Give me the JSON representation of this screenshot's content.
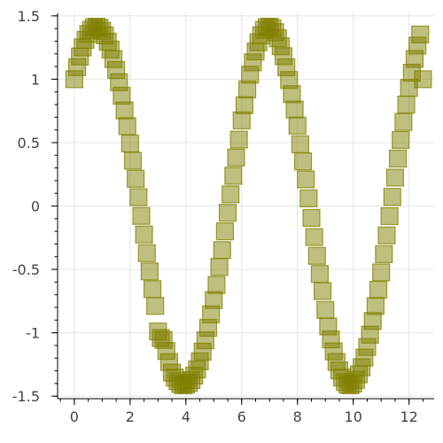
{
  "chart_data": {
    "type": "scatter",
    "title": "",
    "xlabel": "",
    "ylabel": "",
    "xlim": [
      -0.6,
      12.9
    ],
    "ylim": [
      -1.52,
      1.52
    ],
    "grid": true,
    "marker": "square",
    "marker_color": "#808000",
    "marker_alpha": 0.5,
    "x_ticks": [
      0,
      2,
      4,
      6,
      8,
      10,
      12
    ],
    "x_tick_labels": [
      "0",
      "2",
      "4",
      "6",
      "8",
      "10",
      "12"
    ],
    "y_ticks": [
      -1.5,
      -1,
      -0.5,
      0,
      0.5,
      1,
      1.5
    ],
    "y_tick_labels": [
      "-1.5",
      "-1",
      "-0.5",
      "0",
      "0.5",
      "1",
      "1.5"
    ],
    "series": [
      {
        "x": [
          0.0,
          0.1,
          0.2,
          0.3,
          0.4,
          0.5,
          0.6,
          0.7,
          0.8,
          0.9,
          1.0,
          1.1,
          1.2,
          1.3,
          1.4,
          1.5,
          1.6,
          1.7,
          1.8,
          1.9,
          2.0,
          2.1,
          2.2,
          2.3,
          2.4,
          2.5,
          2.6,
          2.7,
          2.8,
          2.9,
          3.0,
          3.1,
          3.2,
          3.3,
          3.4,
          3.5,
          3.6,
          3.7,
          3.8,
          3.9,
          4.0,
          4.1,
          4.2,
          4.3,
          4.4,
          4.5,
          4.6,
          4.7,
          4.8,
          4.9,
          5.0,
          5.1,
          5.2,
          5.3,
          5.4,
          5.5,
          5.6,
          5.7,
          5.8,
          5.9,
          6.0,
          6.1,
          6.2,
          6.3,
          6.4,
          6.5,
          6.6,
          6.7,
          6.8,
          6.9,
          7.0,
          7.1,
          7.2,
          7.3,
          7.4,
          7.5,
          7.6,
          7.7,
          7.8,
          7.9,
          8.0,
          8.1,
          8.2,
          8.3,
          8.4,
          8.5,
          8.6,
          8.7,
          8.8,
          8.9,
          9.0,
          9.1,
          9.2,
          9.3,
          9.4,
          9.5,
          9.6,
          9.7,
          9.8,
          9.9,
          10.0,
          10.1,
          10.2,
          10.3,
          10.4,
          10.5,
          10.6,
          10.7,
          10.8,
          10.9,
          11.0,
          11.1,
          11.2,
          11.3,
          11.4,
          11.5,
          11.6,
          11.7,
          11.8,
          11.9,
          12.0,
          12.1,
          12.2,
          12.3,
          12.4,
          12.5
        ],
        "y": [
          1.0,
          1.095,
          1.179,
          1.251,
          1.31,
          1.357,
          1.389,
          1.409,
          1.414,
          1.405,
          1.382,
          1.346,
          1.296,
          1.234,
          1.159,
          1.073,
          0.976,
          0.87,
          0.754,
          0.63,
          0.493,
          0.357,
          0.215,
          0.07,
          -0.078,
          -0.225,
          -0.372,
          -0.516,
          -0.656,
          -0.788,
          -0.99,
          -1.041,
          -1.057,
          -1.144,
          -1.231,
          -1.314,
          -1.353,
          -1.382,
          -1.404,
          -1.414,
          -1.41,
          -1.396,
          -1.373,
          -1.338,
          -1.289,
          -1.225,
          -1.149,
          -1.059,
          -0.961,
          -0.855,
          -0.742,
          -0.623,
          -0.48,
          -0.348,
          -0.2,
          -0.054,
          0.092,
          0.238,
          0.382,
          0.524,
          0.675,
          0.795,
          0.92,
          1.036,
          1.133,
          1.219,
          1.291,
          1.347,
          1.389,
          1.411,
          1.414,
          1.403,
          1.371,
          1.323,
          1.26,
          1.182,
          1.094,
          0.994,
          0.882,
          0.761,
          0.634,
          0.487,
          0.352,
          0.21,
          0.06,
          -0.094,
          -0.245,
          -0.393,
          -0.536,
          -0.671,
          -0.82,
          -0.95,
          -1.052,
          -1.147,
          -1.23,
          -1.297,
          -1.354,
          -1.389,
          -1.41,
          -1.414,
          -1.4,
          -1.372,
          -1.328,
          -1.272,
          -1.196,
          -1.112,
          -1.015,
          -0.907,
          -0.789,
          -0.661,
          -0.524,
          -0.38,
          -0.232,
          -0.08,
          0.072,
          0.224,
          0.374,
          0.521,
          0.663,
          0.8,
          0.932,
          1.051,
          1.16,
          1.265,
          1.353,
          1.0
        ]
      }
    ]
  }
}
